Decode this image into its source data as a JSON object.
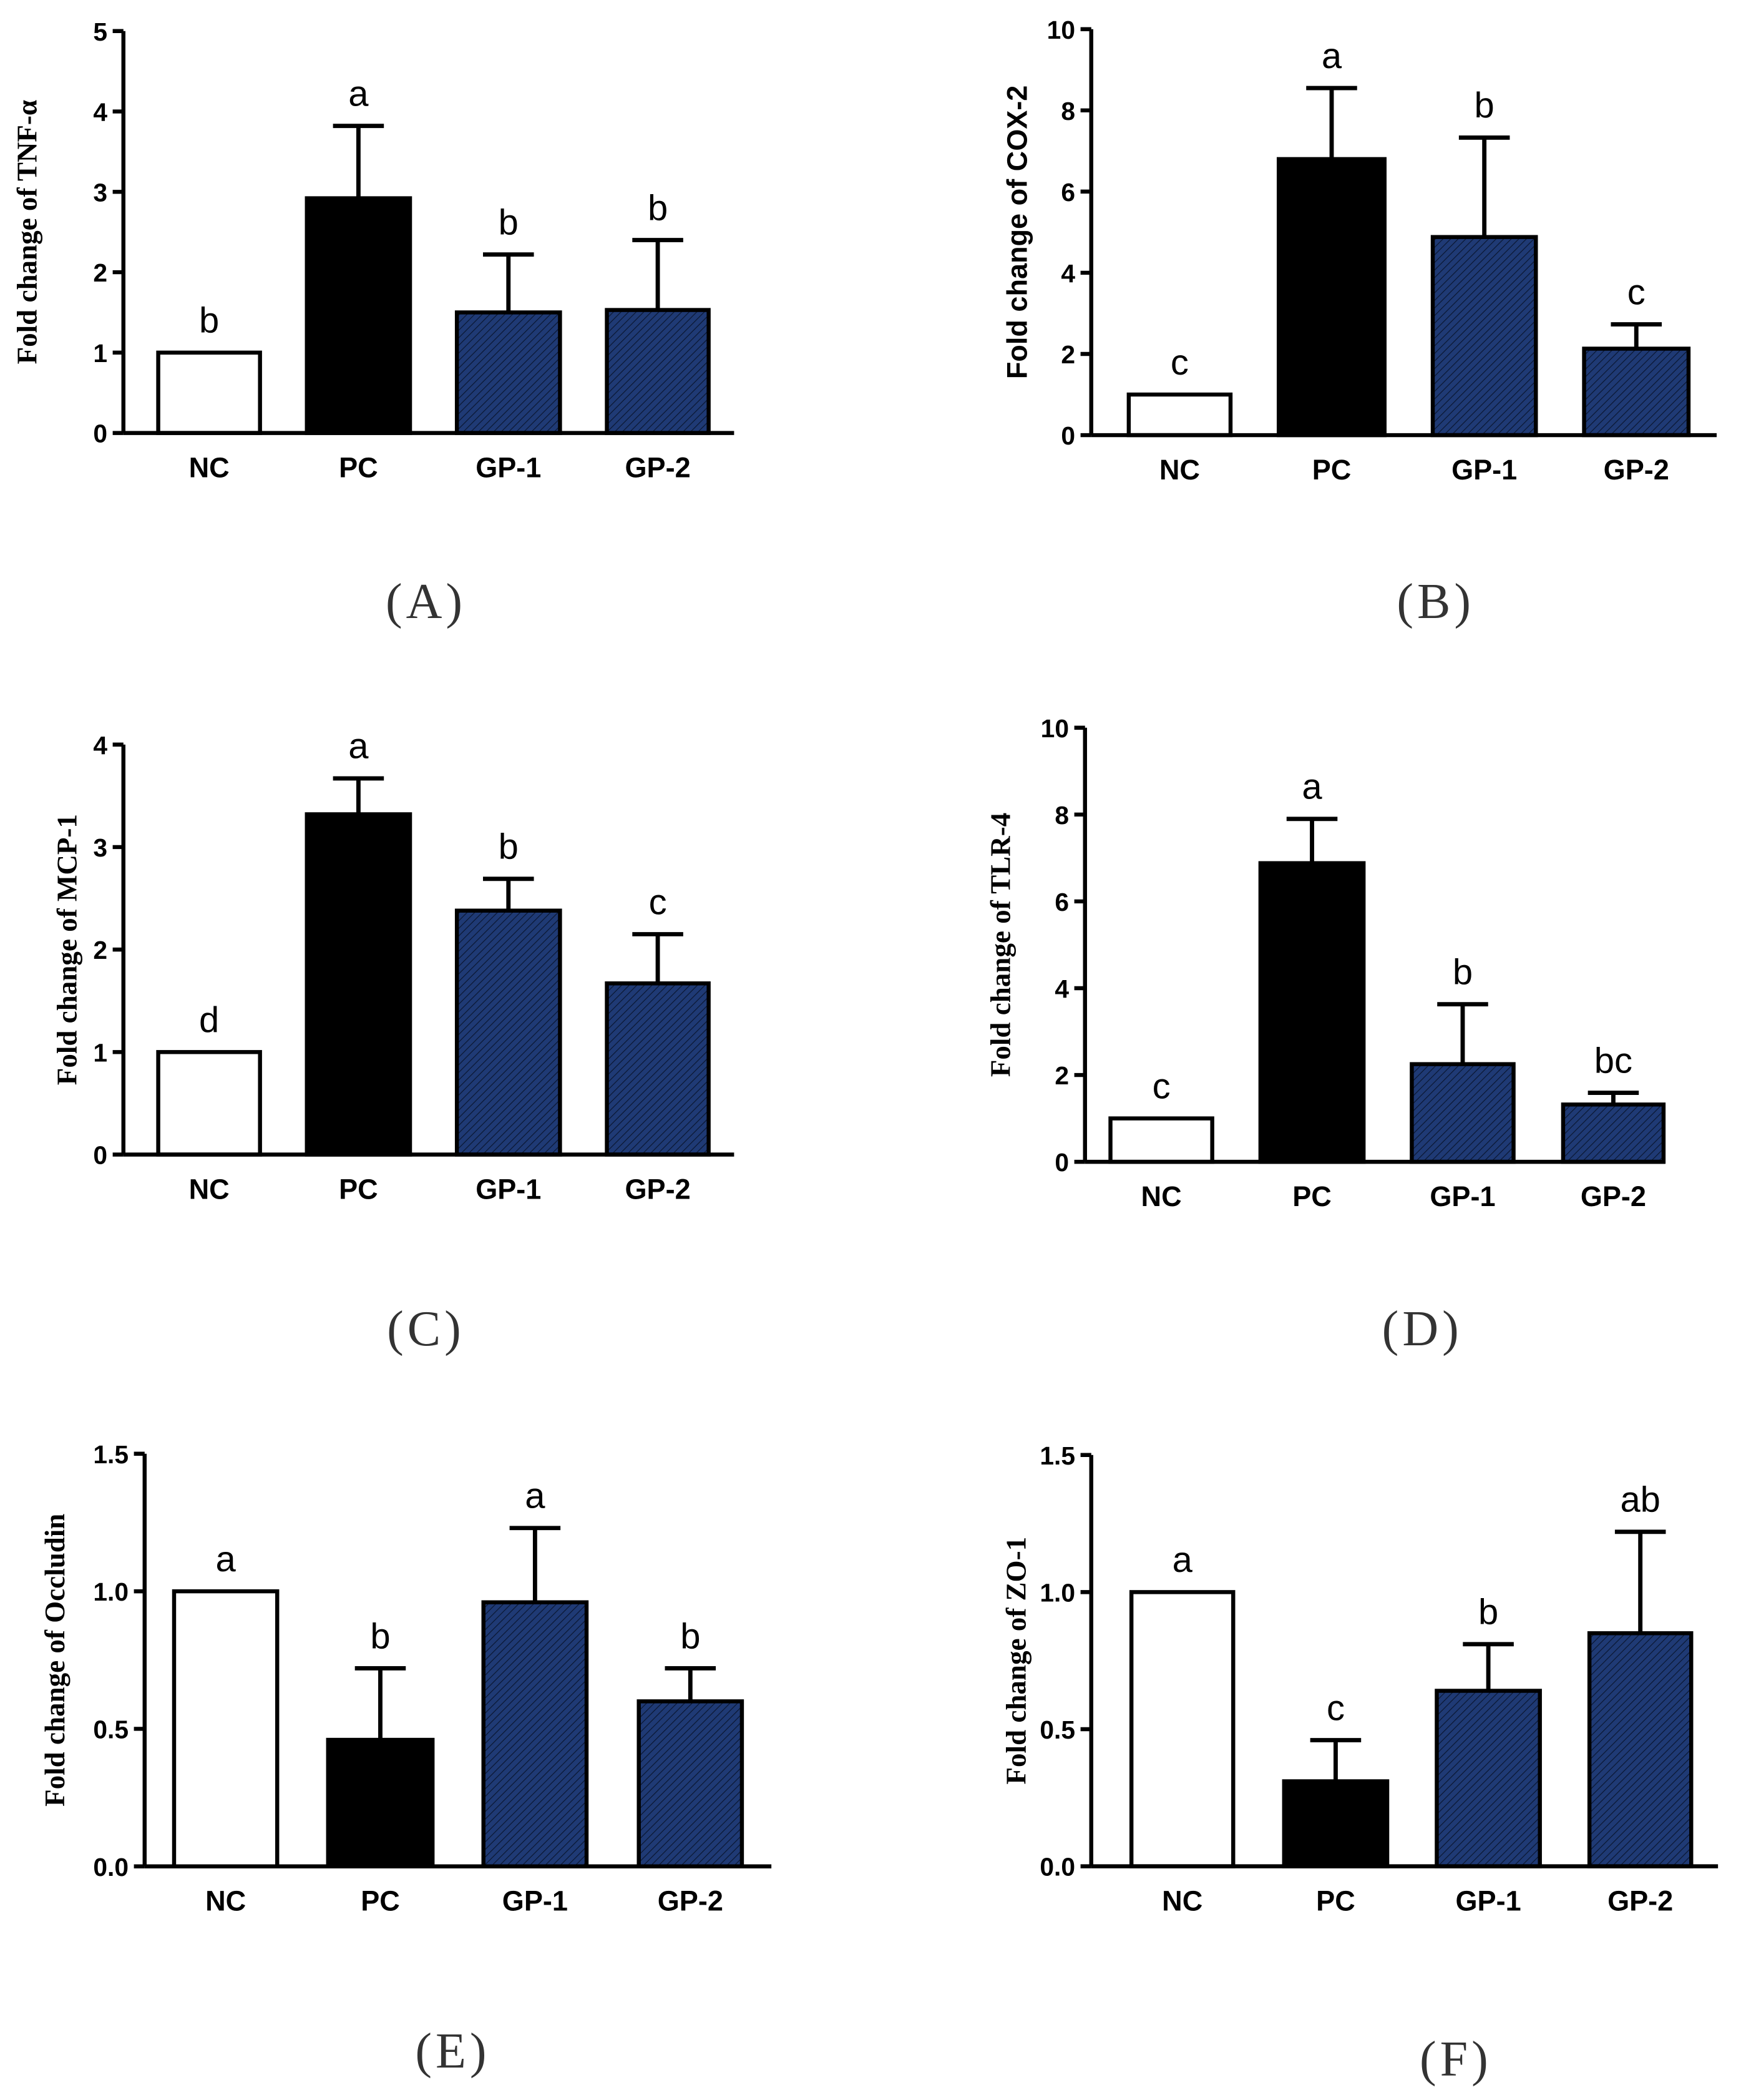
{
  "figure": {
    "pattern_color": "#1f3a75",
    "pc_color": "#000000",
    "nc_color": "#ffffff"
  },
  "chart_data": [
    {
      "type": "bar",
      "panel": "(A)",
      "ylabel": "Fold change of TNF-α",
      "categories": [
        "NC",
        "PC",
        "GP-1",
        "GP-2"
      ],
      "values": [
        1.0,
        2.92,
        1.5,
        1.53
      ],
      "errors": [
        0.0,
        0.9,
        0.72,
        0.87
      ],
      "significance": [
        "b",
        "a",
        "b",
        "b"
      ],
      "ylim": [
        0,
        5
      ],
      "yticks": [
        "0",
        "1",
        "2",
        "3",
        "4",
        "5"
      ],
      "ytick_values": [
        0,
        1,
        2,
        3,
        4,
        5
      ],
      "fills": [
        "white",
        "black",
        "hatched",
        "hatched"
      ]
    },
    {
      "type": "bar",
      "panel": "(B)",
      "ylabel": "Fold change of COX-2",
      "categories": [
        "NC",
        "PC",
        "GP-1",
        "GP-2"
      ],
      "values": [
        1.0,
        6.8,
        4.88,
        2.13
      ],
      "errors": [
        0.0,
        1.75,
        2.45,
        0.6
      ],
      "significance": [
        "c",
        "a",
        "b",
        "c"
      ],
      "ylim": [
        0,
        10
      ],
      "yticks": [
        "0",
        "2",
        "4",
        "6",
        "8",
        "10"
      ],
      "ytick_values": [
        0,
        2,
        4,
        6,
        8,
        10
      ],
      "fills": [
        "white",
        "black",
        "hatched",
        "hatched"
      ]
    },
    {
      "type": "bar",
      "panel": "(C)",
      "ylabel": "Fold change of  MCP-1",
      "categories": [
        "NC",
        "PC",
        "GP-1",
        "GP-2"
      ],
      "values": [
        1.0,
        3.32,
        2.38,
        1.67
      ],
      "errors": [
        0.0,
        0.35,
        0.31,
        0.48
      ],
      "significance": [
        "d",
        "a",
        "b",
        "c"
      ],
      "ylim": [
        0,
        4
      ],
      "yticks": [
        "0",
        "1",
        "2",
        "3",
        "4"
      ],
      "ytick_values": [
        0,
        1,
        2,
        3,
        4
      ],
      "fills": [
        "white",
        "black",
        "hatched",
        "hatched"
      ]
    },
    {
      "type": "bar",
      "panel": "(D)",
      "ylabel": "Fold change of  TLR-4",
      "categories": [
        "NC",
        "PC",
        "GP-1",
        "GP-2"
      ],
      "values": [
        1.0,
        6.88,
        2.25,
        1.32
      ],
      "errors": [
        0.0,
        1.02,
        1.38,
        0.27
      ],
      "significance": [
        "c",
        "a",
        "b",
        "bc"
      ],
      "ylim": [
        0,
        10
      ],
      "yticks": [
        "0",
        "2",
        "4",
        "6",
        "8",
        "10"
      ],
      "ytick_values": [
        0,
        2,
        4,
        6,
        8,
        10
      ],
      "fills": [
        "white",
        "black",
        "hatched",
        "hatched"
      ]
    },
    {
      "type": "bar",
      "panel": "(E)",
      "ylabel": "Fold change of  Occludin",
      "categories": [
        "NC",
        "PC",
        "GP-1",
        "GP-2"
      ],
      "values": [
        1.0,
        0.46,
        0.96,
        0.6
      ],
      "errors": [
        0.0,
        0.26,
        0.27,
        0.12
      ],
      "significance": [
        "a",
        "b",
        "a",
        "b"
      ],
      "ylim": [
        0,
        1.5
      ],
      "yticks": [
        "0.0",
        "0.5",
        "1.0",
        "1.5"
      ],
      "ytick_values": [
        0,
        0.5,
        1.0,
        1.5
      ],
      "fills": [
        "white",
        "black",
        "hatched",
        "hatched"
      ]
    },
    {
      "type": "bar",
      "panel": "(F)",
      "ylabel": "Fold change of  ZO-1",
      "categories": [
        "NC",
        "PC",
        "GP-1",
        "GP-2"
      ],
      "values": [
        1.0,
        0.31,
        0.64,
        0.85
      ],
      "errors": [
        0.0,
        0.15,
        0.17,
        0.37
      ],
      "significance": [
        "a",
        "c",
        "b",
        "ab"
      ],
      "ylim": [
        0,
        1.5
      ],
      "yticks": [
        "0.0",
        "0.5",
        "1.0",
        "1.5"
      ],
      "ytick_values": [
        0,
        0.5,
        1.0,
        1.5
      ],
      "fills": [
        "white",
        "black",
        "hatched",
        "hatched"
      ]
    }
  ]
}
